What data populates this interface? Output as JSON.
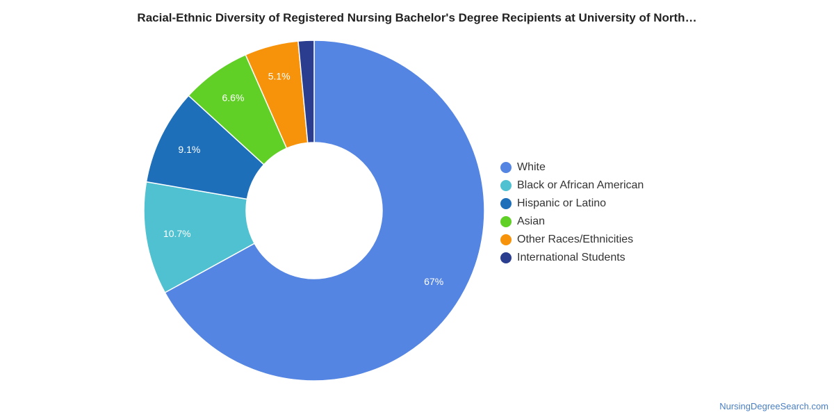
{
  "chart_data": {
    "type": "pie",
    "variant": "donut",
    "title": "Racial-Ethnic Diversity of Registered Nursing Bachelor's Degree Recipients at University of North…",
    "categories": [
      "White",
      "Black or African American",
      "Hispanic or Latino",
      "Asian",
      "Other Races/Ethnicities",
      "International Students"
    ],
    "values": [
      67.0,
      10.7,
      9.1,
      6.6,
      5.1,
      1.5
    ],
    "labels": [
      "67%",
      "10.7%",
      "9.1%",
      "6.6%",
      "5.1%",
      ""
    ],
    "colors": [
      "#5585e2",
      "#4fc1d0",
      "#1e6fba",
      "#60cf26",
      "#f7930b",
      "#2a3d8f"
    ],
    "legend_position": "right"
  },
  "source": "NursingDegreeSearch.com"
}
